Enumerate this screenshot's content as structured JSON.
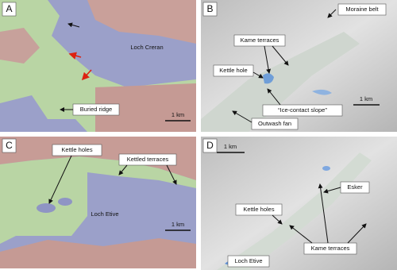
{
  "panels": [
    {
      "letter": "A",
      "labels": [
        "Loch Creran",
        "Buried ridge"
      ],
      "scale": "1 km"
    },
    {
      "letter": "B",
      "labels": [
        "Moraine belt",
        "Kame terraces",
        "Kettle hole",
        "“Ice-contact slope”",
        "Outwash fan"
      ],
      "scale": "1 km"
    },
    {
      "letter": "C",
      "labels": [
        "Kettle holes",
        "Kettled terraces",
        "Loch Etive"
      ],
      "scale": "1 km"
    },
    {
      "letter": "D",
      "labels": [
        "Esker",
        "Kettle holes",
        "Kame terraces",
        "Loch Etive"
      ],
      "scale": "1 km"
    }
  ]
}
